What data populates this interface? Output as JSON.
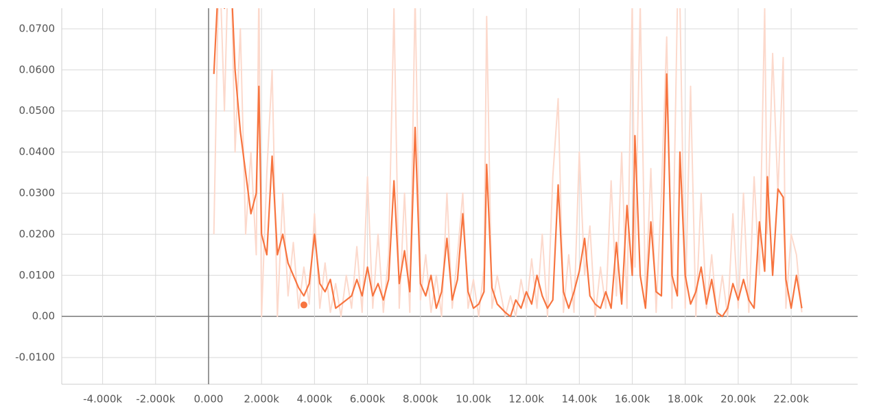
{
  "chart_data": {
    "type": "line",
    "x": [
      200,
      400,
      600,
      800,
      1000,
      1200,
      1400,
      1600,
      1800,
      1900,
      2000,
      2200,
      2400,
      2600,
      2800,
      3000,
      3200,
      3400,
      3600,
      3800,
      4000,
      4200,
      4400,
      4600,
      4800,
      5000,
      5200,
      5400,
      5600,
      5800,
      6000,
      6200,
      6400,
      6600,
      6800,
      7000,
      7200,
      7400,
      7600,
      7800,
      8000,
      8200,
      8400,
      8600,
      8800,
      9000,
      9200,
      9400,
      9600,
      9800,
      10000,
      10200,
      10400,
      10500,
      10700,
      10900,
      11200,
      11400,
      11600,
      11800,
      12000,
      12200,
      12400,
      12600,
      12800,
      13000,
      13200,
      13400,
      13600,
      13800,
      14000,
      14200,
      14400,
      14600,
      14800,
      15000,
      15200,
      15400,
      15600,
      15800,
      16000,
      16100,
      16300,
      16500,
      16700,
      16900,
      17100,
      17300,
      17500,
      17700,
      17800,
      18000,
      18200,
      18400,
      18600,
      18800,
      19000,
      19200,
      19400,
      19600,
      19800,
      20000,
      20200,
      20400,
      20600,
      20800,
      21000,
      21100,
      21300,
      21500,
      21700,
      21800,
      22000,
      22200,
      22400
    ],
    "series": [
      {
        "color": "#fcd9cc",
        "values": [
          0.02,
          0.09,
          0.05,
          0.1,
          0.04,
          0.07,
          0.02,
          0.04,
          0.015,
          0.08,
          0.0,
          0.035,
          0.06,
          0.0,
          0.03,
          0.005,
          0.018,
          0.002,
          0.012,
          0.003,
          0.025,
          0.002,
          0.013,
          0.001,
          0.008,
          0.0,
          0.01,
          0.002,
          0.017,
          0.001,
          0.034,
          0.002,
          0.02,
          0.001,
          0.015,
          0.075,
          0.002,
          0.03,
          0.001,
          0.078,
          0.004,
          0.015,
          0.001,
          0.01,
          0.0,
          0.03,
          0.002,
          0.015,
          0.03,
          0.002,
          0.009,
          0.0,
          0.012,
          0.073,
          0.002,
          0.01,
          0.0,
          0.005,
          0.0,
          0.009,
          0.002,
          0.014,
          0.002,
          0.02,
          0.0,
          0.034,
          0.053,
          0.001,
          0.015,
          0.001,
          0.04,
          0.01,
          0.022,
          0.0,
          0.012,
          0.002,
          0.033,
          0.005,
          0.04,
          0.002,
          0.077,
          0.012,
          0.076,
          0.004,
          0.036,
          0.001,
          0.03,
          0.068,
          0.002,
          0.075,
          0.076,
          0.002,
          0.056,
          0.0,
          0.03,
          0.002,
          0.015,
          0.0,
          0.01,
          0.0,
          0.025,
          0.002,
          0.03,
          0.001,
          0.034,
          0.01,
          0.075,
          0.02,
          0.064,
          0.03,
          0.063,
          0.002,
          0.02,
          0.015,
          0.001
        ]
      },
      {
        "color": "#f7743f",
        "values": [
          0.059,
          0.085,
          0.075,
          0.09,
          0.06,
          0.045,
          0.035,
          0.025,
          0.03,
          0.056,
          0.02,
          0.015,
          0.039,
          0.015,
          0.02,
          0.013,
          0.01,
          0.007,
          0.005,
          0.008,
          0.02,
          0.008,
          0.006,
          0.009,
          0.002,
          0.003,
          0.004,
          0.005,
          0.009,
          0.005,
          0.012,
          0.005,
          0.008,
          0.004,
          0.009,
          0.033,
          0.008,
          0.016,
          0.006,
          0.046,
          0.008,
          0.005,
          0.01,
          0.002,
          0.006,
          0.019,
          0.004,
          0.009,
          0.025,
          0.006,
          0.002,
          0.003,
          0.006,
          0.037,
          0.007,
          0.003,
          0.001,
          0.0,
          0.004,
          0.002,
          0.006,
          0.003,
          0.01,
          0.005,
          0.002,
          0.004,
          0.032,
          0.006,
          0.002,
          0.006,
          0.011,
          0.019,
          0.005,
          0.003,
          0.002,
          0.006,
          0.002,
          0.018,
          0.003,
          0.027,
          0.01,
          0.044,
          0.01,
          0.002,
          0.023,
          0.006,
          0.005,
          0.059,
          0.01,
          0.005,
          0.04,
          0.01,
          0.003,
          0.006,
          0.012,
          0.003,
          0.009,
          0.001,
          0.0,
          0.002,
          0.008,
          0.004,
          0.009,
          0.004,
          0.002,
          0.023,
          0.011,
          0.034,
          0.01,
          0.031,
          0.029,
          0.009,
          0.002,
          0.01,
          0.002
        ]
      }
    ],
    "highlight": {
      "x": 3600,
      "y": 0.0028,
      "color": "#f7743f"
    },
    "xlim": [
      -5544,
      24510
    ],
    "ylim": [
      -0.0165,
      0.075
    ],
    "xticks": [
      {
        "value": -4000,
        "label": "-4.000k"
      },
      {
        "value": -2000,
        "label": "-2.000k"
      },
      {
        "value": 0,
        "label": "0.000"
      },
      {
        "value": 2000,
        "label": "2.000k"
      },
      {
        "value": 4000,
        "label": "4.000k"
      },
      {
        "value": 6000,
        "label": "6.000k"
      },
      {
        "value": 8000,
        "label": "8.000k"
      },
      {
        "value": 10000,
        "label": "10.00k"
      },
      {
        "value": 12000,
        "label": "12.00k"
      },
      {
        "value": 14000,
        "label": "14.00k"
      },
      {
        "value": 16000,
        "label": "16.00k"
      },
      {
        "value": 18000,
        "label": "18.00k"
      },
      {
        "value": 20000,
        "label": "20.00k"
      },
      {
        "value": 22000,
        "label": "22.00k"
      }
    ],
    "yticks": [
      {
        "value": -0.01,
        "label": "-0.0100"
      },
      {
        "value": 0,
        "label": "0.00"
      },
      {
        "value": 0.01,
        "label": "0.0100"
      },
      {
        "value": 0.02,
        "label": "0.0200"
      },
      {
        "value": 0.03,
        "label": "0.0300"
      },
      {
        "value": 0.04,
        "label": "0.0400"
      },
      {
        "value": 0.05,
        "label": "0.0500"
      },
      {
        "value": 0.06,
        "label": "0.0600"
      },
      {
        "value": 0.07,
        "label": "0.0700"
      }
    ],
    "grid": true
  }
}
